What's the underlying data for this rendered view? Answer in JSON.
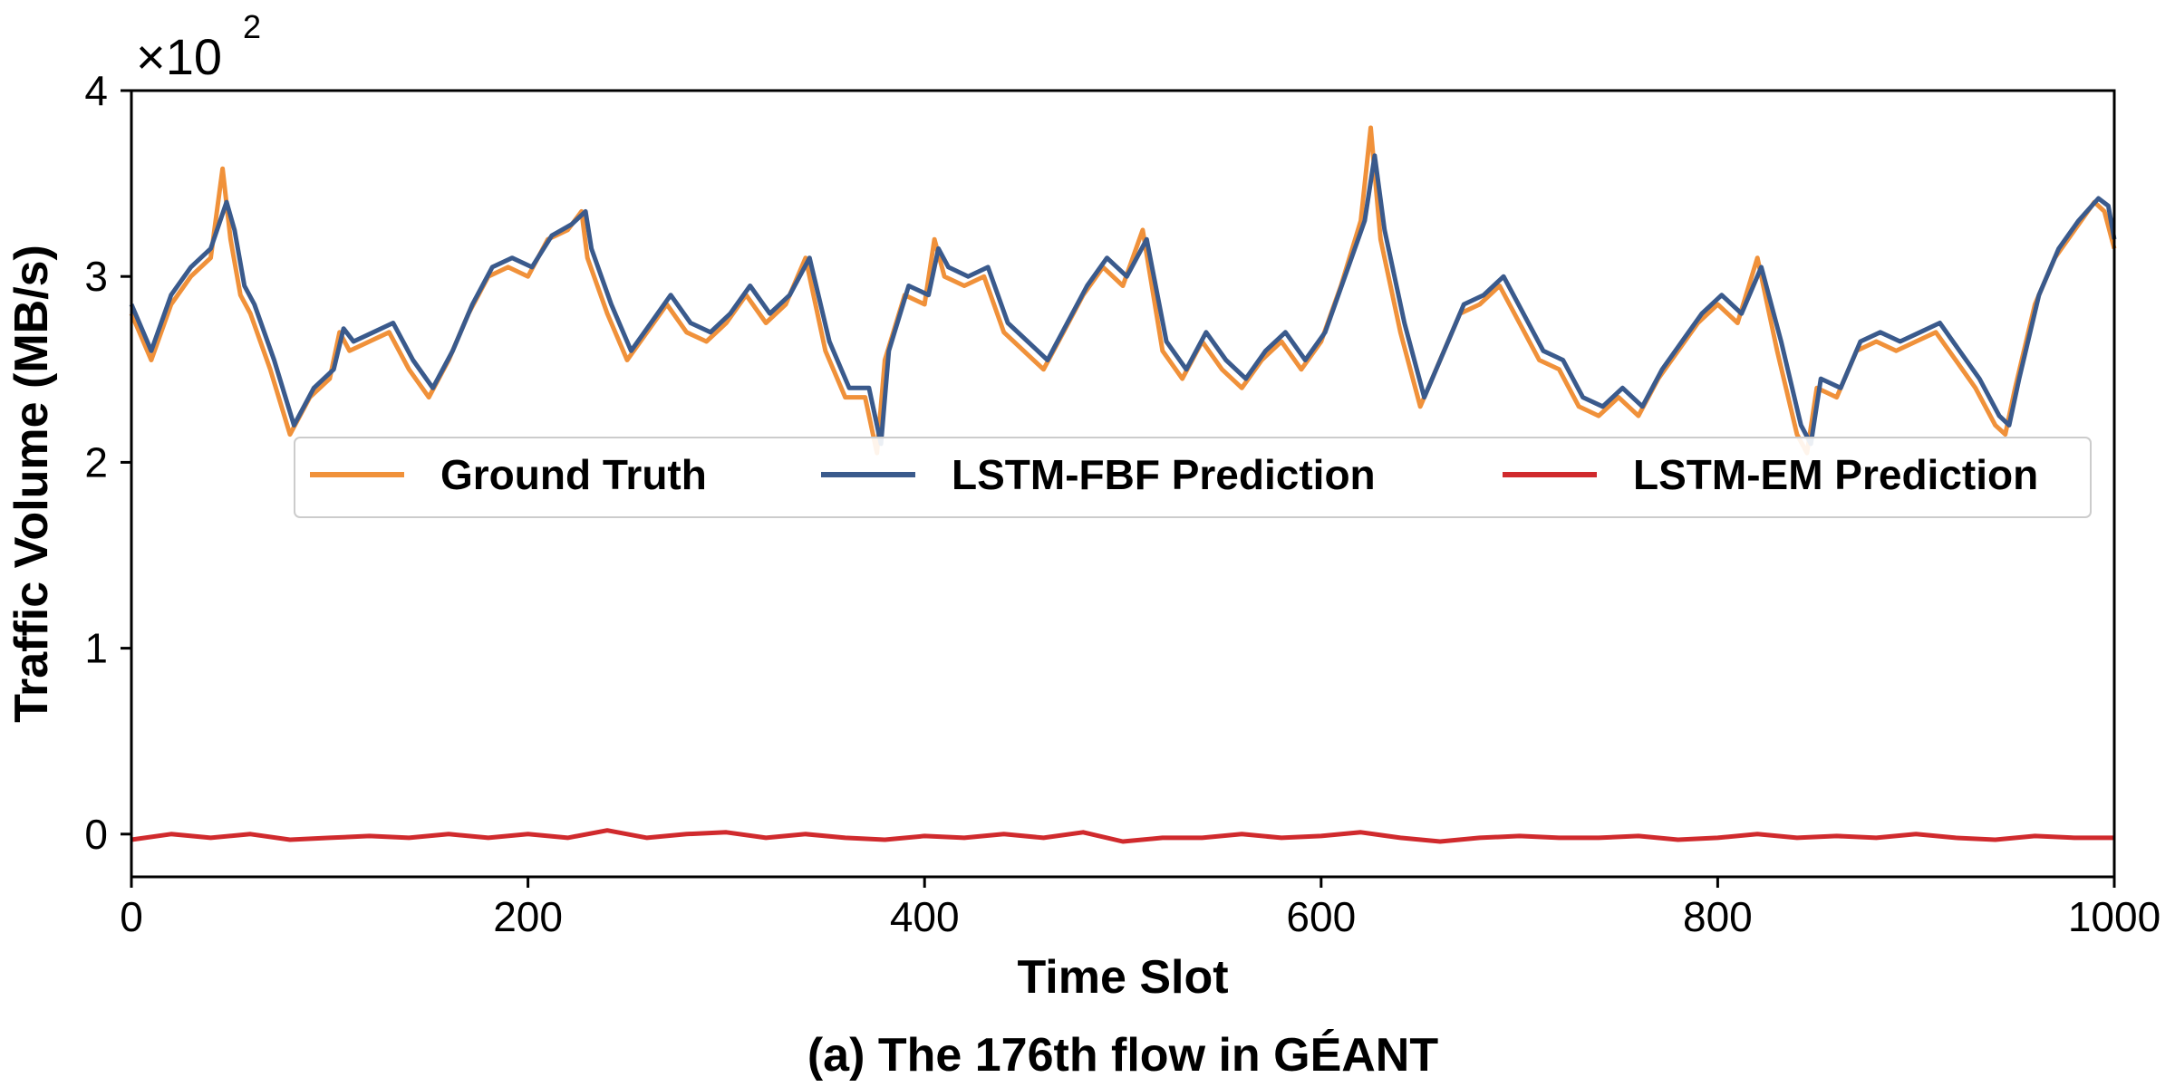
{
  "chart_data": {
    "type": "line",
    "caption": "(a) The 176th flow in GÉANT",
    "xlabel": "Time Slot",
    "ylabel": "Traffic Volume (MB/s)",
    "y_multiplier": {
      "base": "×10",
      "exponent": "2"
    },
    "xlim": [
      0,
      1000
    ],
    "ylim": [
      -0.23,
      4.0
    ],
    "x_ticks": [
      0,
      200,
      400,
      600,
      800,
      1000
    ],
    "y_ticks": [
      0,
      1,
      2,
      3,
      4
    ],
    "grid": false,
    "legend_position": "center, upper middle",
    "colors": {
      "ground_truth": "#f0913a",
      "lstm_fbf": "#3a5a8c",
      "lstm_em": "#d02a2d"
    },
    "series": [
      {
        "name": "Ground Truth",
        "color": "#f0913a",
        "x": [
          0,
          10,
          20,
          30,
          40,
          46,
          50,
          55,
          60,
          70,
          80,
          90,
          100,
          105,
          110,
          120,
          130,
          140,
          150,
          160,
          170,
          180,
          190,
          200,
          210,
          220,
          227,
          230,
          240,
          250,
          260,
          270,
          280,
          290,
          300,
          310,
          320,
          330,
          340,
          350,
          360,
          370,
          376,
          380,
          390,
          400,
          405,
          410,
          420,
          430,
          440,
          450,
          460,
          470,
          480,
          490,
          500,
          510,
          520,
          530,
          540,
          550,
          560,
          570,
          580,
          590,
          600,
          610,
          620,
          625,
          630,
          640,
          650,
          660,
          670,
          680,
          690,
          700,
          710,
          720,
          730,
          740,
          750,
          760,
          770,
          780,
          790,
          800,
          810,
          820,
          830,
          840,
          845,
          850,
          860,
          870,
          880,
          890,
          900,
          910,
          920,
          930,
          940,
          945,
          950,
          960,
          970,
          980,
          990,
          995,
          1000
        ],
        "y": [
          2.8,
          2.55,
          2.85,
          3.0,
          3.1,
          3.58,
          3.2,
          2.9,
          2.8,
          2.5,
          2.15,
          2.35,
          2.45,
          2.7,
          2.6,
          2.65,
          2.7,
          2.5,
          2.35,
          2.55,
          2.8,
          3.0,
          3.05,
          3.0,
          3.2,
          3.25,
          3.35,
          3.1,
          2.8,
          2.55,
          2.7,
          2.85,
          2.7,
          2.65,
          2.75,
          2.9,
          2.75,
          2.85,
          3.1,
          2.6,
          2.35,
          2.35,
          2.05,
          2.55,
          2.9,
          2.85,
          3.2,
          3.0,
          2.95,
          3.0,
          2.7,
          2.6,
          2.5,
          2.7,
          2.9,
          3.05,
          2.95,
          3.25,
          2.6,
          2.45,
          2.65,
          2.5,
          2.4,
          2.55,
          2.65,
          2.5,
          2.65,
          2.95,
          3.3,
          3.8,
          3.2,
          2.7,
          2.3,
          2.55,
          2.8,
          2.85,
          2.95,
          2.75,
          2.55,
          2.5,
          2.3,
          2.25,
          2.35,
          2.25,
          2.45,
          2.6,
          2.75,
          2.85,
          2.75,
          3.1,
          2.6,
          2.15,
          2.05,
          2.4,
          2.35,
          2.6,
          2.65,
          2.6,
          2.65,
          2.7,
          2.55,
          2.4,
          2.2,
          2.15,
          2.4,
          2.85,
          3.1,
          3.25,
          3.4,
          3.35,
          3.15
        ]
      },
      {
        "name": "LSTM-FBF Prediction",
        "color": "#3a5a8c",
        "x": [
          0,
          10,
          20,
          30,
          40,
          48,
          52,
          57,
          62,
          72,
          82,
          92,
          102,
          107,
          112,
          122,
          132,
          142,
          152,
          162,
          172,
          182,
          192,
          202,
          212,
          222,
          229,
          232,
          242,
          252,
          262,
          272,
          282,
          292,
          302,
          312,
          322,
          332,
          342,
          352,
          362,
          372,
          378,
          382,
          392,
          402,
          407,
          412,
          422,
          432,
          442,
          452,
          462,
          472,
          482,
          492,
          502,
          512,
          522,
          532,
          542,
          552,
          562,
          572,
          582,
          592,
          602,
          612,
          622,
          627,
          632,
          642,
          652,
          662,
          672,
          682,
          692,
          702,
          712,
          722,
          732,
          742,
          752,
          762,
          772,
          782,
          792,
          802,
          812,
          822,
          832,
          842,
          847,
          852,
          862,
          872,
          882,
          892,
          902,
          912,
          922,
          932,
          942,
          947,
          952,
          962,
          972,
          982,
          992,
          997,
          1000
        ],
        "y": [
          2.85,
          2.6,
          2.9,
          3.05,
          3.15,
          3.4,
          3.25,
          2.95,
          2.85,
          2.55,
          2.2,
          2.4,
          2.5,
          2.72,
          2.65,
          2.7,
          2.75,
          2.55,
          2.4,
          2.6,
          2.85,
          3.05,
          3.1,
          3.05,
          3.22,
          3.28,
          3.35,
          3.15,
          2.85,
          2.6,
          2.75,
          2.9,
          2.75,
          2.7,
          2.8,
          2.95,
          2.8,
          2.9,
          3.1,
          2.65,
          2.4,
          2.4,
          2.1,
          2.6,
          2.95,
          2.9,
          3.15,
          3.05,
          3.0,
          3.05,
          2.75,
          2.65,
          2.55,
          2.75,
          2.95,
          3.1,
          3.0,
          3.2,
          2.65,
          2.5,
          2.7,
          2.55,
          2.45,
          2.6,
          2.7,
          2.55,
          2.7,
          3.0,
          3.3,
          3.65,
          3.25,
          2.75,
          2.35,
          2.6,
          2.85,
          2.9,
          3.0,
          2.8,
          2.6,
          2.55,
          2.35,
          2.3,
          2.4,
          2.3,
          2.5,
          2.65,
          2.8,
          2.9,
          2.8,
          3.05,
          2.65,
          2.2,
          2.1,
          2.45,
          2.4,
          2.65,
          2.7,
          2.65,
          2.7,
          2.75,
          2.6,
          2.45,
          2.25,
          2.2,
          2.45,
          2.9,
          3.15,
          3.3,
          3.42,
          3.38,
          3.2
        ]
      },
      {
        "name": "LSTM-EM Prediction",
        "color": "#d02a2d",
        "x": [
          0,
          20,
          40,
          60,
          80,
          100,
          120,
          140,
          160,
          180,
          200,
          220,
          240,
          260,
          280,
          300,
          320,
          340,
          360,
          380,
          400,
          420,
          440,
          460,
          480,
          500,
          520,
          540,
          560,
          580,
          600,
          620,
          640,
          660,
          680,
          700,
          720,
          740,
          760,
          780,
          800,
          820,
          840,
          860,
          880,
          900,
          920,
          940,
          960,
          980,
          1000
        ],
        "y": [
          -0.03,
          0.0,
          -0.02,
          0.0,
          -0.03,
          -0.02,
          -0.01,
          -0.02,
          0.0,
          -0.02,
          0.0,
          -0.02,
          0.02,
          -0.02,
          0.0,
          0.01,
          -0.02,
          0.0,
          -0.02,
          -0.03,
          -0.01,
          -0.02,
          0.0,
          -0.02,
          0.01,
          -0.04,
          -0.02,
          -0.02,
          0.0,
          -0.02,
          -0.01,
          0.01,
          -0.02,
          -0.04,
          -0.02,
          -0.01,
          -0.02,
          -0.02,
          -0.01,
          -0.03,
          -0.02,
          0.0,
          -0.02,
          -0.01,
          -0.02,
          0.0,
          -0.02,
          -0.03,
          -0.01,
          -0.02,
          -0.02
        ]
      }
    ]
  }
}
